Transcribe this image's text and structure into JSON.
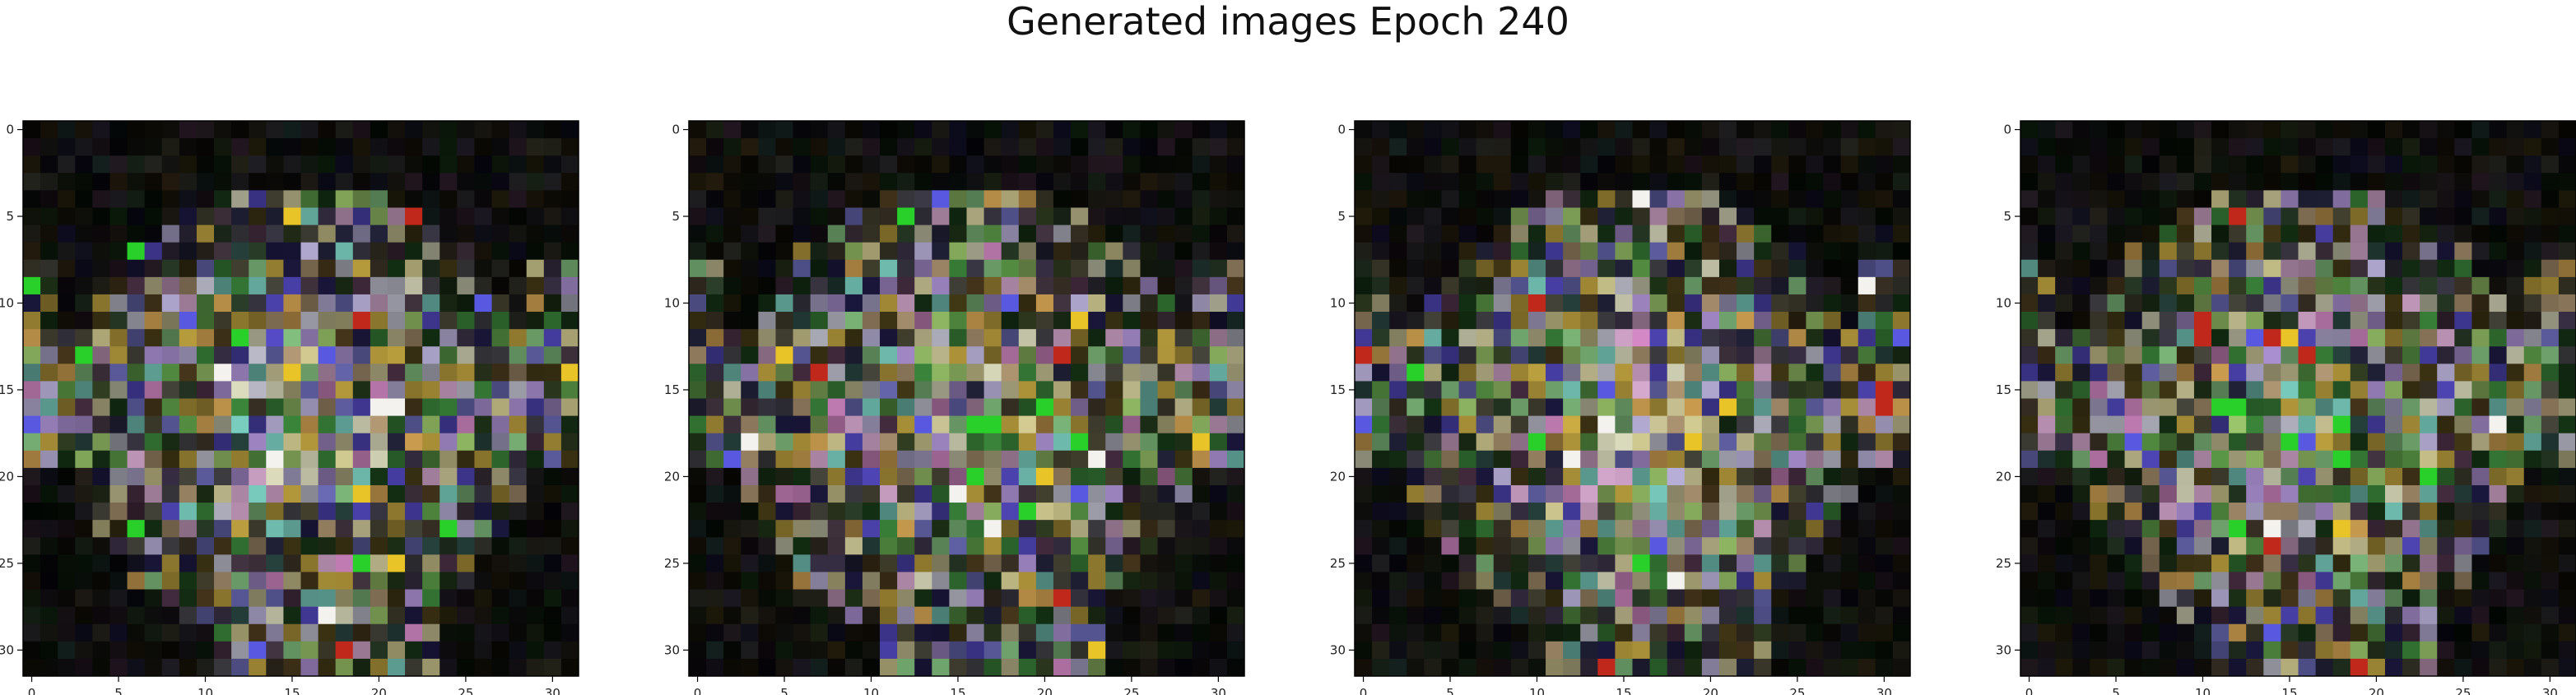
{
  "figure": {
    "title": "Generated images Epoch 240"
  },
  "chart_data": {
    "type": "heatmap",
    "title": "Generated images Epoch 240",
    "grid_size": [
      32,
      32
    ],
    "panel_count": 4,
    "grid": false,
    "x_ticks": [
      0,
      5,
      10,
      15,
      20,
      25,
      30
    ],
    "y_ticks": [
      0,
      5,
      10,
      15,
      20,
      25,
      30
    ],
    "xlim": [
      -0.5,
      31.5
    ],
    "ylim": [
      31.5,
      -0.5
    ],
    "background_color": "#050505",
    "palette": [
      "#d6cf9e",
      "#c9c0ec",
      "#8ed08a",
      "#e6b25a",
      "#b79ae0",
      "#5fa04a",
      "#e8e8c8",
      "#bba07a",
      "#7fd7c8",
      "#e0b0d8",
      "#3f8f3f",
      "#5a4fd0",
      "#c4a640",
      "#a3d070",
      "#e8e0a0",
      "#c8c8d8",
      "#d8b848",
      "#7070c0",
      "#e090d0",
      "#44aa44"
    ],
    "accent_colors": {
      "red": "#c0281c",
      "yellow": "#e8c428",
      "bright_green": "#2ad02a",
      "blue": "#5858e0",
      "white": "#f4f2ee"
    },
    "panels": [
      {
        "panel": 1,
        "x_tick_labels": [
          "0",
          "5",
          "10",
          "15",
          "20",
          "25",
          "30"
        ],
        "y_tick_labels": [
          "0",
          "5",
          "10",
          "15",
          "20",
          "25",
          "30"
        ]
      },
      {
        "panel": 2,
        "x_tick_labels": [
          "0",
          "5",
          "10",
          "15",
          "20",
          "25",
          "30"
        ],
        "y_tick_labels": [
          "0",
          "5",
          "10",
          "15",
          "20",
          "25",
          "30"
        ]
      },
      {
        "panel": 3,
        "x_tick_labels": [
          "0",
          "5",
          "10",
          "15",
          "20",
          "25",
          "30"
        ],
        "y_tick_labels": [
          "0",
          "5",
          "10",
          "15",
          "20",
          "25",
          "30"
        ]
      },
      {
        "panel": 4,
        "x_tick_labels": [
          "0",
          "5",
          "10",
          "15",
          "20",
          "25",
          "30"
        ],
        "y_tick_labels": [
          "0",
          "5",
          "10",
          "15",
          "20",
          "25",
          "30"
        ]
      }
    ]
  }
}
